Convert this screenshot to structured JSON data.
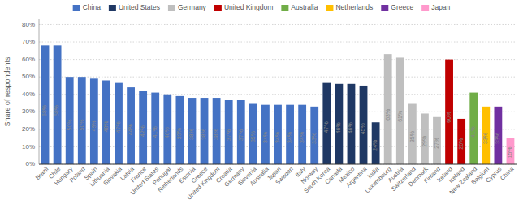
{
  "chart_data": {
    "type": "bar",
    "ylabel": "Share of respondents",
    "categories": [
      "Brazil",
      "Chile",
      "Hungary",
      "Poland",
      "Spain",
      "Lithuania",
      "Slovakia",
      "Latvia",
      "France",
      "United States",
      "Portugal",
      "Netherlands",
      "Estonia",
      "Greece",
      "United Kingdom",
      "Croatia",
      "Germany",
      "Slovenia",
      "Australia",
      "Japan",
      "Sweden",
      "Italy",
      "Norway",
      "South Korea",
      "Canada",
      "Mexico",
      "Argentina",
      "India",
      "Luxembourg",
      "Austria",
      "Switzerland",
      "Denmark",
      "Finland",
      "Ireland",
      "Iceland",
      "New Zealand",
      "Belgium",
      "Cyprus",
      "China"
    ],
    "values": [
      68,
      68,
      50,
      50,
      49,
      48,
      47,
      44,
      42,
      41,
      40,
      39,
      38,
      38,
      38,
      37,
      37,
      35,
      34,
      34,
      34,
      34,
      33,
      47,
      46,
      46,
      45,
      24,
      63,
      61,
      35,
      29,
      27,
      60,
      26,
      41,
      33,
      33,
      15
    ],
    "value_labels": [
      "68%",
      "68%",
      "50%",
      "50%",
      "49%",
      "48%",
      "47%",
      "44%",
      "42%",
      "41%",
      "40%",
      "39%",
      "38%",
      "38%",
      "38%",
      "37%",
      "37%",
      "35%",
      "34%",
      "34%",
      "34%",
      "34%",
      "33%",
      "47%",
      "46%",
      "46%",
      "45%",
      "24%",
      "63%",
      "61%",
      "35%",
      "29%",
      "27%",
      "60%",
      "26%",
      "41%",
      "33%",
      "33%",
      "15%"
    ],
    "data_labels": true,
    "colors": [
      "#4472C4",
      "#4472C4",
      "#4472C4",
      "#4472C4",
      "#4472C4",
      "#4472C4",
      "#4472C4",
      "#4472C4",
      "#4472C4",
      "#4472C4",
      "#4472C4",
      "#4472C4",
      "#4472C4",
      "#4472C4",
      "#4472C4",
      "#4472C4",
      "#4472C4",
      "#4472C4",
      "#4472C4",
      "#4472C4",
      "#4472C4",
      "#4472C4",
      "#4472C4",
      "#1F3864",
      "#1F3864",
      "#1F3864",
      "#1F3864",
      "#1F3864",
      "#BFBFBF",
      "#BFBFBF",
      "#BFBFBF",
      "#BFBFBF",
      "#BFBFBF",
      "#C00000",
      "#C00000",
      "#70AD47",
      "#FFBF00",
      "#7030A0",
      "#FF99CC"
    ],
    "ylim": [
      0,
      83
    ],
    "yticks": [
      {
        "value": 0,
        "label": "0%"
      },
      {
        "value": 10,
        "label": "10%"
      },
      {
        "value": 20,
        "label": "20%"
      },
      {
        "value": 30,
        "label": "30%"
      },
      {
        "value": 40,
        "label": "40%"
      },
      {
        "value": 50,
        "label": "50%"
      },
      {
        "value": 60,
        "label": "60%"
      },
      {
        "value": 70,
        "label": "70%"
      },
      {
        "value": 80,
        "label": "80%"
      }
    ],
    "grid": true,
    "legend": "top",
    "legend_items": [
      {
        "label": "China",
        "color": "#4472C4"
      },
      {
        "label": "United States",
        "color": "#1F3864"
      },
      {
        "label": "Germany",
        "color": "#BFBFBF"
      },
      {
        "label": "United Kingdom",
        "color": "#C00000"
      },
      {
        "label": "Australia",
        "color": "#70AD47"
      },
      {
        "label": "Netherlands",
        "color": "#FFBF00"
      },
      {
        "label": "Greece",
        "color": "#7030A0"
      },
      {
        "label": "Japan",
        "color": "#FF99CC"
      }
    ]
  }
}
